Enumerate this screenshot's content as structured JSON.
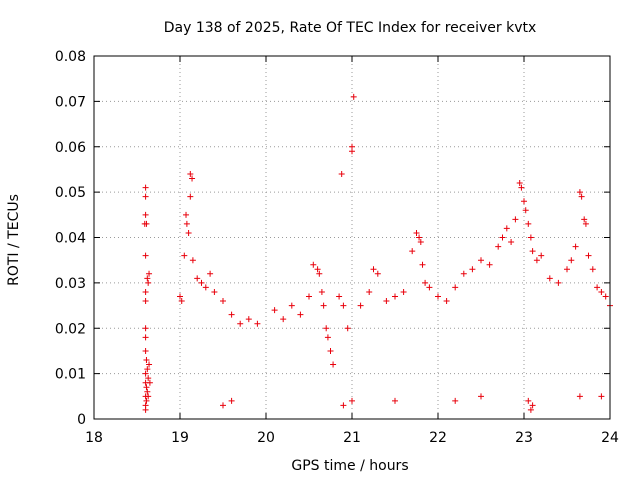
{
  "chart_data": {
    "type": "scatter",
    "title": "Day 138 of 2025, Rate Of TEC Index for receiver kvtx",
    "xlabel": "GPS time / hours",
    "ylabel": "ROTI / TECUs",
    "xlim": [
      18,
      24
    ],
    "ylim": [
      0,
      0.08
    ],
    "x_ticks": [
      18,
      19,
      20,
      21,
      22,
      23,
      24
    ],
    "y_ticks": [
      0,
      0.01,
      0.02,
      0.03,
      0.04,
      0.05,
      0.06,
      0.07,
      0.08
    ],
    "x_tick_labels": [
      "18",
      "19",
      "20",
      "21",
      "22",
      "23",
      "24"
    ],
    "y_tick_labels": [
      "0",
      "0.01",
      "0.02",
      "0.03",
      "0.04",
      "0.05",
      "0.06",
      "0.07",
      "0.08"
    ],
    "grid": true,
    "marker": "plus",
    "marker_color": "#e8000b",
    "series": [
      {
        "points": [
          [
            18.6,
            0.051
          ],
          [
            18.6,
            0.049
          ],
          [
            18.6,
            0.045
          ],
          [
            18.59,
            0.043
          ],
          [
            18.61,
            0.043
          ],
          [
            18.6,
            0.036
          ],
          [
            18.62,
            0.031
          ],
          [
            18.63,
            0.03
          ],
          [
            18.64,
            0.032
          ],
          [
            18.6,
            0.028
          ],
          [
            18.6,
            0.026
          ],
          [
            18.6,
            0.02
          ],
          [
            18.6,
            0.018
          ],
          [
            18.6,
            0.015
          ],
          [
            18.61,
            0.013
          ],
          [
            18.62,
            0.011
          ],
          [
            18.6,
            0.01
          ],
          [
            18.63,
            0.009
          ],
          [
            18.6,
            0.008
          ],
          [
            18.61,
            0.007
          ],
          [
            18.62,
            0.006
          ],
          [
            18.6,
            0.005
          ],
          [
            18.61,
            0.004
          ],
          [
            18.6,
            0.003
          ],
          [
            18.6,
            0.002
          ],
          [
            18.64,
            0.012
          ],
          [
            18.65,
            0.008
          ],
          [
            18.63,
            0.005
          ],
          [
            19.0,
            0.027
          ],
          [
            19.02,
            0.026
          ],
          [
            19.05,
            0.036
          ],
          [
            19.07,
            0.045
          ],
          [
            19.08,
            0.043
          ],
          [
            19.1,
            0.041
          ],
          [
            19.12,
            0.049
          ],
          [
            19.12,
            0.054
          ],
          [
            19.14,
            0.053
          ],
          [
            19.15,
            0.035
          ],
          [
            19.2,
            0.031
          ],
          [
            19.25,
            0.03
          ],
          [
            19.3,
            0.029
          ],
          [
            19.35,
            0.032
          ],
          [
            19.4,
            0.028
          ],
          [
            19.5,
            0.026
          ],
          [
            19.6,
            0.023
          ],
          [
            19.7,
            0.021
          ],
          [
            19.8,
            0.022
          ],
          [
            19.9,
            0.021
          ],
          [
            20.1,
            0.024
          ],
          [
            20.2,
            0.022
          ],
          [
            20.3,
            0.025
          ],
          [
            20.4,
            0.023
          ],
          [
            20.5,
            0.027
          ],
          [
            20.55,
            0.034
          ],
          [
            20.6,
            0.033
          ],
          [
            20.62,
            0.032
          ],
          [
            20.65,
            0.028
          ],
          [
            20.67,
            0.025
          ],
          [
            20.7,
            0.02
          ],
          [
            20.72,
            0.018
          ],
          [
            20.75,
            0.015
          ],
          [
            20.78,
            0.012
          ],
          [
            20.88,
            0.054
          ],
          [
            20.85,
            0.027
          ],
          [
            20.9,
            0.025
          ],
          [
            20.95,
            0.02
          ],
          [
            21.0,
            0.059
          ],
          [
            21.0,
            0.06
          ],
          [
            21.02,
            0.071
          ],
          [
            21.1,
            0.025
          ],
          [
            21.2,
            0.028
          ],
          [
            21.25,
            0.033
          ],
          [
            21.3,
            0.032
          ],
          [
            21.4,
            0.026
          ],
          [
            21.5,
            0.027
          ],
          [
            21.6,
            0.028
          ],
          [
            21.7,
            0.037
          ],
          [
            21.75,
            0.041
          ],
          [
            21.78,
            0.04
          ],
          [
            21.8,
            0.039
          ],
          [
            21.82,
            0.034
          ],
          [
            21.85,
            0.03
          ],
          [
            21.9,
            0.029
          ],
          [
            22.0,
            0.027
          ],
          [
            22.1,
            0.026
          ],
          [
            22.2,
            0.029
          ],
          [
            22.3,
            0.032
          ],
          [
            22.4,
            0.033
          ],
          [
            22.5,
            0.035
          ],
          [
            22.6,
            0.034
          ],
          [
            22.7,
            0.038
          ],
          [
            22.75,
            0.04
          ],
          [
            22.8,
            0.042
          ],
          [
            22.85,
            0.039
          ],
          [
            22.9,
            0.044
          ],
          [
            22.95,
            0.052
          ],
          [
            22.97,
            0.051
          ],
          [
            23.0,
            0.048
          ],
          [
            23.02,
            0.046
          ],
          [
            23.05,
            0.043
          ],
          [
            23.08,
            0.04
          ],
          [
            23.1,
            0.037
          ],
          [
            23.15,
            0.035
          ],
          [
            23.2,
            0.036
          ],
          [
            23.3,
            0.031
          ],
          [
            23.4,
            0.03
          ],
          [
            23.5,
            0.033
          ],
          [
            23.55,
            0.035
          ],
          [
            23.6,
            0.038
          ],
          [
            23.65,
            0.05
          ],
          [
            23.67,
            0.049
          ],
          [
            23.7,
            0.044
          ],
          [
            23.72,
            0.043
          ],
          [
            23.75,
            0.036
          ],
          [
            23.8,
            0.033
          ],
          [
            23.85,
            0.029
          ],
          [
            23.9,
            0.028
          ],
          [
            23.95,
            0.027
          ],
          [
            24.0,
            0.025
          ],
          [
            23.05,
            0.004
          ],
          [
            23.08,
            0.002
          ],
          [
            23.1,
            0.003
          ],
          [
            23.65,
            0.005
          ],
          [
            19.5,
            0.003
          ],
          [
            19.6,
            0.004
          ],
          [
            20.9,
            0.003
          ],
          [
            21.0,
            0.004
          ],
          [
            21.5,
            0.004
          ],
          [
            22.2,
            0.004
          ],
          [
            22.5,
            0.005
          ],
          [
            23.9,
            0.005
          ]
        ]
      }
    ]
  }
}
